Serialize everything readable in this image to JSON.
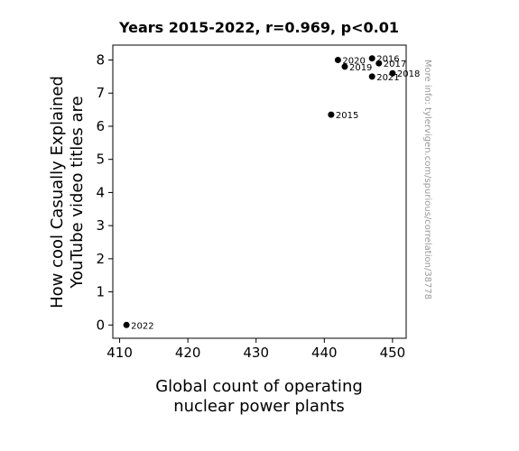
{
  "chart_data": {
    "type": "scatter",
    "title": "Years 2015-2022, r=0.969, p<0.01",
    "xlabel": [
      "Global count of operating",
      "nuclear power plants"
    ],
    "ylabel": [
      "How cool Casually Explained",
      "YouTube video titles are"
    ],
    "xlim": [
      409,
      452
    ],
    "ylim": [
      -0.4,
      8.45
    ],
    "xticks": [
      410,
      420,
      430,
      440,
      450
    ],
    "yticks": [
      0,
      1,
      2,
      3,
      4,
      5,
      6,
      7,
      8
    ],
    "grid": false,
    "points": [
      {
        "x": 441,
        "y": 6.35,
        "label": "2015"
      },
      {
        "x": 447,
        "y": 8.05,
        "label": "2016"
      },
      {
        "x": 448,
        "y": 7.9,
        "label": "2017"
      },
      {
        "x": 450,
        "y": 7.6,
        "label": "2018"
      },
      {
        "x": 443,
        "y": 7.8,
        "label": "2019"
      },
      {
        "x": 442,
        "y": 8.0,
        "label": "2020"
      },
      {
        "x": 447,
        "y": 7.5,
        "label": "2021"
      },
      {
        "x": 411,
        "y": 0.0,
        "label": "2022"
      }
    ],
    "marker_color": "#000000"
  },
  "watermark": "More info: tylervigen.com/spurious/correlation/38778"
}
